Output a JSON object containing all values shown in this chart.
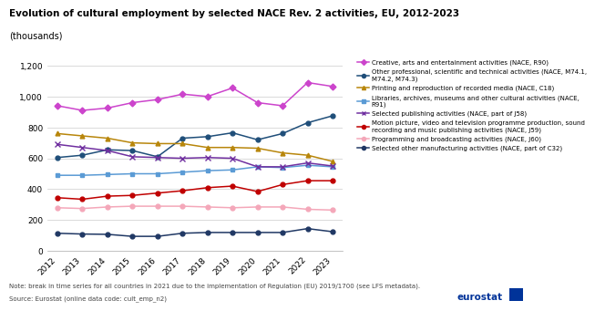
{
  "title": "Evolution of cultural employment by selected NACE Rev. 2 activities, EU, 2012-2023",
  "subtitle": "(thousands)",
  "years": [
    2012,
    2013,
    2014,
    2015,
    2016,
    2017,
    2018,
    2019,
    2020,
    2021,
    2022,
    2023
  ],
  "series": [
    {
      "label": "Creative, arts and entertainment activities (NACE, R90)",
      "color": "#cc44cc",
      "marker": "D",
      "markersize": 3.5,
      "values": [
        940,
        910,
        925,
        960,
        980,
        1015,
        1000,
        1055,
        960,
        940,
        1090,
        1065
      ]
    },
    {
      "label": "Other professional, scientific and technical activities (NACE, M74.1,\nM74.2, M74.3)",
      "color": "#1f4e79",
      "marker": "o",
      "markersize": 3.5,
      "values": [
        605,
        620,
        655,
        650,
        610,
        730,
        740,
        765,
        720,
        760,
        830,
        875
      ]
    },
    {
      "label": "Printing and reproduction of recorded media (NACE, C18)",
      "color": "#b8860b",
      "marker": "^",
      "markersize": 3.5,
      "values": [
        760,
        745,
        730,
        700,
        695,
        695,
        670,
        670,
        665,
        635,
        620,
        580
      ]
    },
    {
      "label": "Libraries, archives, museums and other cultural activities (NACE,\nR91)",
      "color": "#5b9bd5",
      "marker": "s",
      "markersize": 3.5,
      "values": [
        490,
        490,
        495,
        500,
        500,
        510,
        520,
        525,
        545,
        540,
        555,
        545
      ]
    },
    {
      "label": "Selected publishing activities (NACE, part of J58)",
      "color": "#7030a0",
      "marker": "x",
      "markersize": 4,
      "values": [
        690,
        670,
        650,
        610,
        605,
        600,
        605,
        600,
        545,
        545,
        570,
        550
      ]
    },
    {
      "label": "Motion picture, video and television programme production, sound\nrecording and music publishing activities (NACE, J59)",
      "color": "#c00000",
      "marker": "o",
      "markersize": 3.5,
      "values": [
        345,
        335,
        355,
        360,
        375,
        390,
        410,
        420,
        385,
        430,
        455,
        455
      ]
    },
    {
      "label": "Programming and broadcasting activities (NACE, J60)",
      "color": "#f4a7b9",
      "marker": "o",
      "markersize": 3.5,
      "values": [
        280,
        275,
        285,
        290,
        290,
        290,
        285,
        280,
        285,
        285,
        270,
        265
      ]
    },
    {
      "label": "Selected other manufacturing activities (NACE, part of C32)",
      "color": "#203864",
      "marker": "o",
      "markersize": 3.5,
      "values": [
        115,
        110,
        108,
        95,
        95,
        115,
        120,
        120,
        120,
        120,
        145,
        125
      ]
    }
  ],
  "ylim": [
    0,
    1200
  ],
  "yticks": [
    0,
    200,
    400,
    600,
    800,
    1000,
    1200
  ],
  "note": "Note: break in time series for all countries in 2021 due to the implementation of Regulation (EU) 2019/1700 (see LFS metadata).",
  "source": "Source: Eurostat (online data code: cult_emp_n2)",
  "background_color": "#ffffff",
  "grid_color": "#cccccc"
}
